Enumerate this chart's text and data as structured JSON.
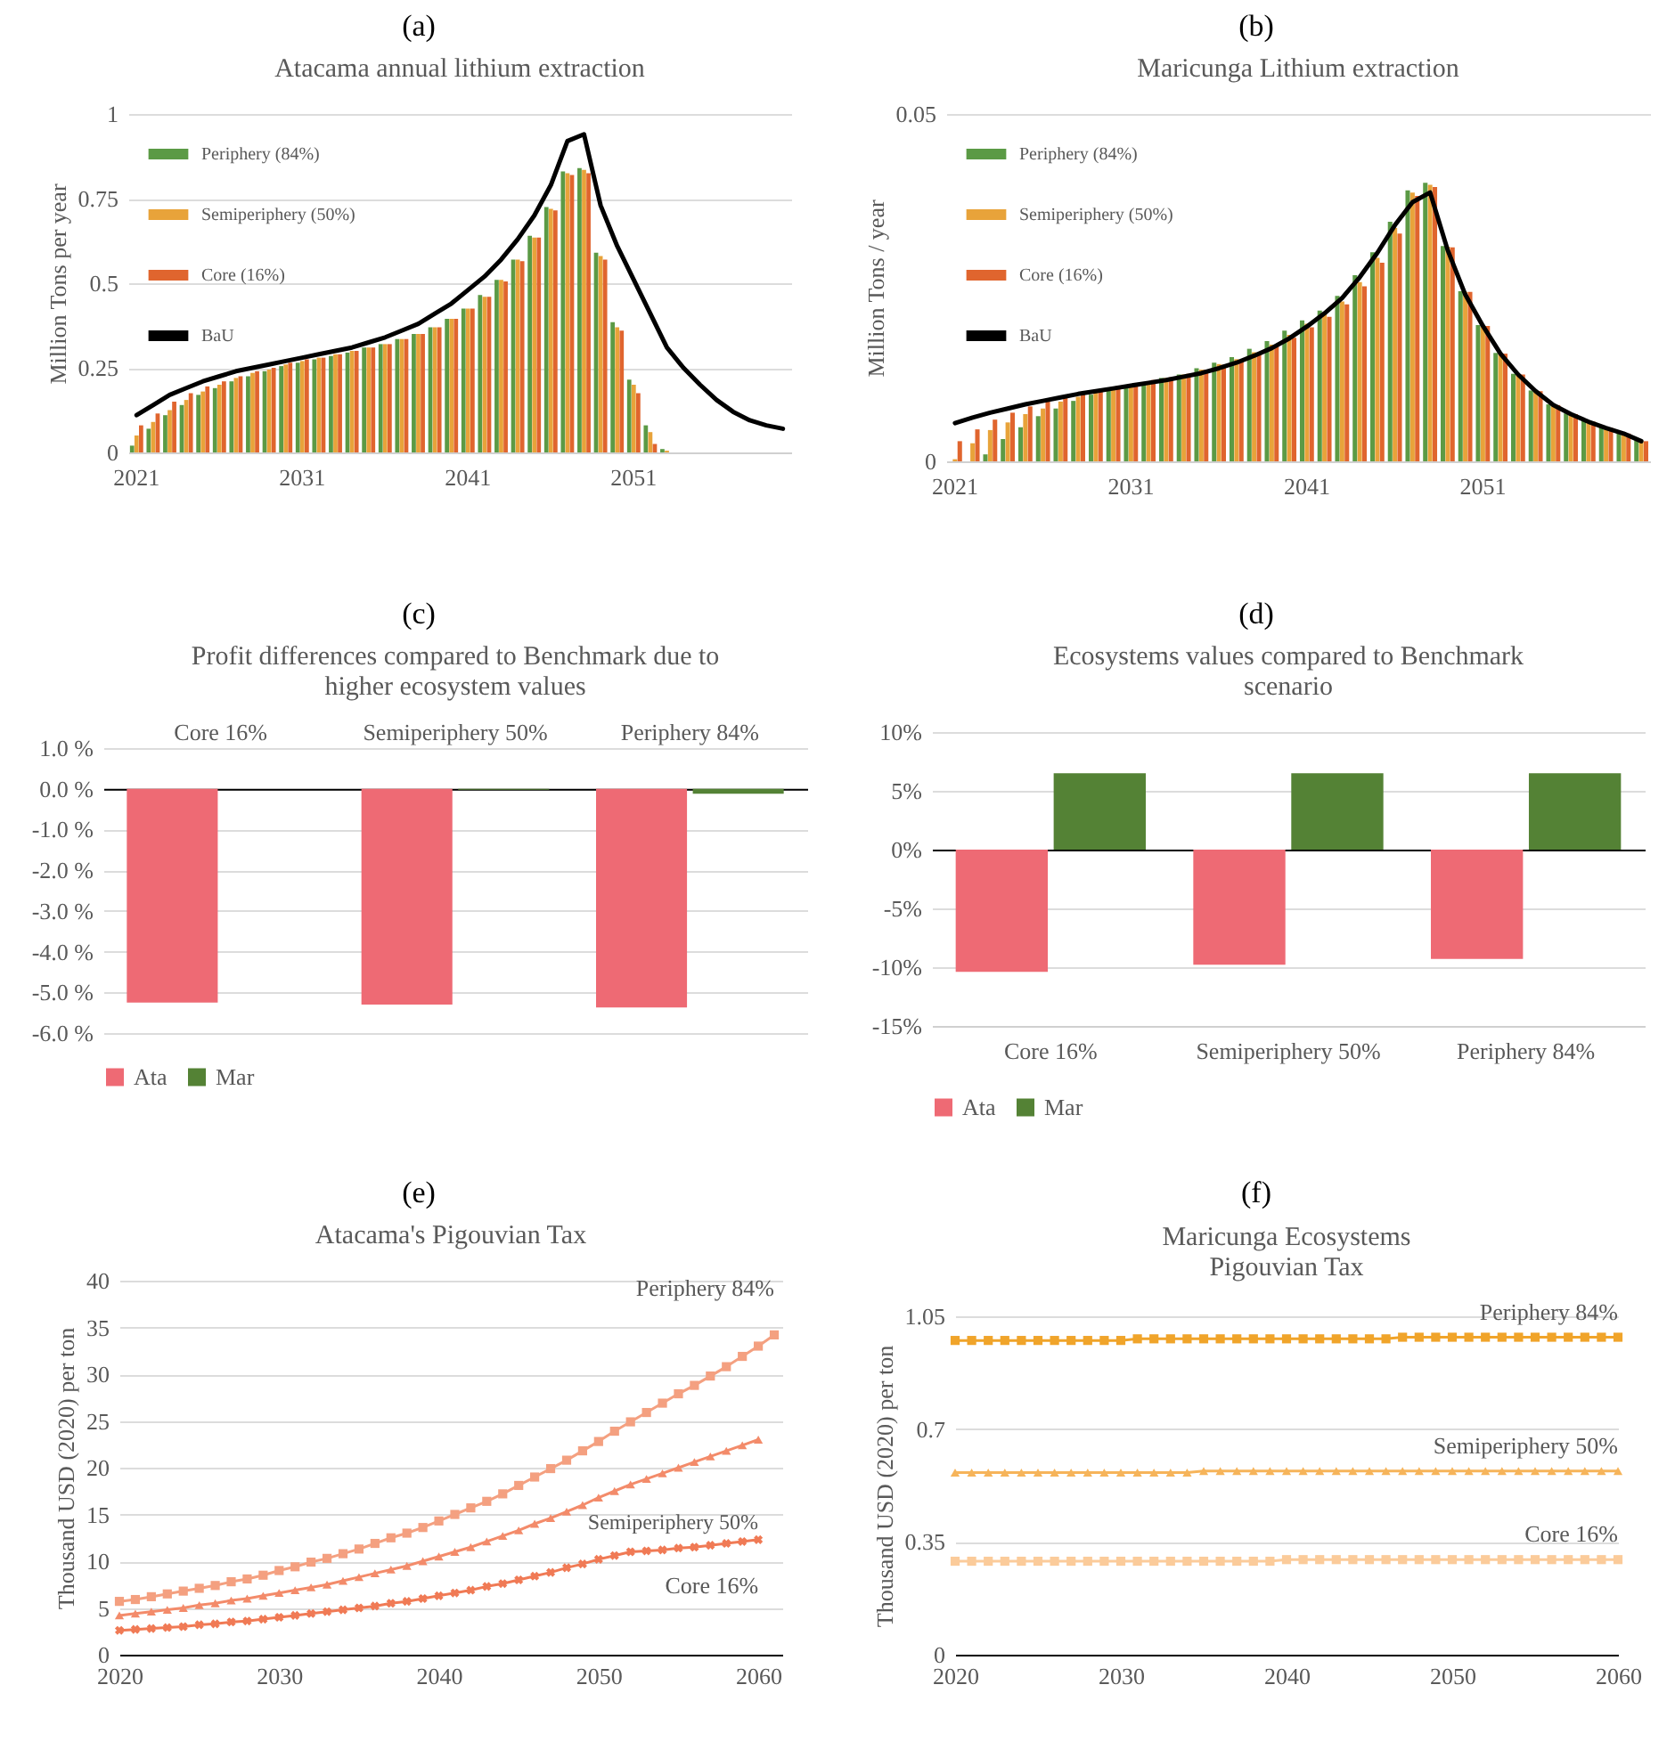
{
  "chart_data": [
    {
      "type": "bar",
      "title": "Atacama annual lithium extraction",
      "ylabel": "Million Tons per year",
      "annotations": [
        "(a)"
      ],
      "legend": "top left",
      "grid": "y",
      "ylim": [
        0,
        1
      ],
      "yticks": [
        0,
        0.25,
        0.5,
        0.75,
        1
      ],
      "categories": [
        "2021",
        null,
        null,
        null,
        null,
        null,
        null,
        null,
        null,
        null,
        "2031",
        null,
        null,
        null,
        null,
        null,
        null,
        null,
        null,
        null,
        "2041",
        null,
        null,
        null,
        null,
        null,
        null,
        null,
        null,
        null,
        "2051",
        null,
        null,
        null,
        null,
        null,
        null,
        null,
        null,
        null
      ],
      "series": [
        {
          "name": "Periphery (84%)",
          "color": "#5b9a45",
          "values": [
            0.02,
            0.07,
            0.11,
            0.14,
            0.17,
            0.19,
            0.21,
            0.225,
            0.24,
            0.255,
            0.265,
            0.275,
            0.285,
            0.295,
            0.31,
            0.32,
            0.335,
            0.35,
            0.37,
            0.395,
            0.425,
            0.465,
            0.51,
            0.57,
            0.64,
            0.725,
            0.83,
            0.84,
            0.59,
            0.385,
            0.215,
            0.08,
            0.01,
            0,
            0,
            0,
            0,
            0,
            0,
            0
          ]
        },
        {
          "name": "Semiperiphery (50%)",
          "color": "#e8a33a",
          "values": [
            0.05,
            0.09,
            0.125,
            0.155,
            0.18,
            0.2,
            0.22,
            0.235,
            0.245,
            0.26,
            0.27,
            0.28,
            0.29,
            0.3,
            0.31,
            0.32,
            0.335,
            0.35,
            0.37,
            0.395,
            0.425,
            0.46,
            0.51,
            0.57,
            0.635,
            0.72,
            0.825,
            0.835,
            0.58,
            0.37,
            0.2,
            0.06,
            0.005,
            0,
            0,
            0,
            0,
            0,
            0,
            0
          ]
        },
        {
          "name": "Core (16%)",
          "color": "#e0652e",
          "values": [
            0.08,
            0.115,
            0.15,
            0.175,
            0.195,
            0.21,
            0.225,
            0.24,
            0.25,
            0.265,
            0.275,
            0.28,
            0.29,
            0.3,
            0.31,
            0.32,
            0.335,
            0.35,
            0.37,
            0.395,
            0.425,
            0.46,
            0.505,
            0.565,
            0.635,
            0.715,
            0.82,
            0.825,
            0.57,
            0.36,
            0.175,
            0.025,
            0,
            0,
            0,
            0,
            0,
            0,
            0,
            0
          ]
        },
        {
          "name": "BaU",
          "color": "#000000",
          "type": "line",
          "values": [
            0.11,
            0.14,
            0.17,
            0.19,
            0.21,
            0.225,
            0.24,
            0.25,
            0.26,
            0.27,
            0.28,
            0.29,
            0.3,
            0.31,
            0.325,
            0.34,
            0.36,
            0.38,
            0.41,
            0.44,
            0.48,
            0.52,
            0.57,
            0.63,
            0.7,
            0.79,
            0.92,
            0.94,
            0.73,
            0.61,
            0.51,
            0.41,
            0.31,
            0.25,
            0.2,
            0.155,
            0.12,
            0.095,
            0.08,
            0.07
          ]
        }
      ]
    },
    {
      "type": "bar",
      "title": "Maricunga Lithium extraction",
      "ylabel": "Million Tons / year",
      "annotations": [
        "(b)"
      ],
      "legend": "top left",
      "grid": "y",
      "ylim": [
        0,
        0.05
      ],
      "yticks": [
        0,
        0.05
      ],
      "categories": [
        "2021",
        null,
        null,
        null,
        null,
        null,
        null,
        null,
        null,
        null,
        "2031",
        null,
        null,
        null,
        null,
        null,
        null,
        null,
        null,
        null,
        "2041",
        null,
        null,
        null,
        null,
        null,
        null,
        null,
        null,
        null,
        "2051",
        null,
        null,
        null,
        null,
        null,
        null,
        null,
        null,
        null
      ],
      "series": [
        {
          "name": "Periphery (84%)",
          "color": "#5b9a45",
          "values": [
            0,
            0,
            0.001,
            0.0032,
            0.0049,
            0.0065,
            0.0076,
            0.0087,
            0.0096,
            0.0103,
            0.0109,
            0.0114,
            0.012,
            0.0125,
            0.0134,
            0.0142,
            0.015,
            0.0162,
            0.0173,
            0.0188,
            0.0203,
            0.0217,
            0.0238,
            0.0268,
            0.0301,
            0.0345,
            0.039,
            0.0401,
            0.031,
            0.0245,
            0.0196,
            0.0156,
            0.0126,
            0.0102,
            0.0082,
            0.0069,
            0.0058,
            0.0049,
            0.0041,
            0.003
          ]
        },
        {
          "name": "Semiperiphery (50%)",
          "color": "#e8a33a",
          "values": [
            0.0003,
            0.0026,
            0.0045,
            0.0056,
            0.0068,
            0.0076,
            0.0086,
            0.0093,
            0.01,
            0.0105,
            0.011,
            0.0115,
            0.012,
            0.0125,
            0.0132,
            0.014,
            0.0147,
            0.0157,
            0.0168,
            0.0182,
            0.0198,
            0.0212,
            0.023,
            0.0258,
            0.0293,
            0.0336,
            0.0387,
            0.0398,
            0.0309,
            0.0244,
            0.0195,
            0.0155,
            0.0125,
            0.0101,
            0.0081,
            0.0068,
            0.0057,
            0.0048,
            0.004,
            0.0029
          ]
        },
        {
          "name": "Core (16%)",
          "color": "#e0652e",
          "values": [
            0.0029,
            0.0046,
            0.006,
            0.007,
            0.0079,
            0.0086,
            0.0093,
            0.01,
            0.0104,
            0.0109,
            0.0112,
            0.0117,
            0.0121,
            0.0126,
            0.0132,
            0.0139,
            0.0146,
            0.0155,
            0.0166,
            0.0178,
            0.0193,
            0.0208,
            0.0226,
            0.0252,
            0.0286,
            0.0328,
            0.0382,
            0.0395,
            0.0308,
            0.0244,
            0.0195,
            0.0155,
            0.0125,
            0.0101,
            0.0081,
            0.0068,
            0.0057,
            0.0048,
            0.004,
            0.0029
          ]
        },
        {
          "name": "BaU",
          "color": "#000000",
          "type": "line",
          "values": [
            0.0055,
            0.0063,
            0.007,
            0.0076,
            0.0082,
            0.0087,
            0.0092,
            0.0097,
            0.0101,
            0.0105,
            0.0109,
            0.0113,
            0.0117,
            0.0122,
            0.0127,
            0.0134,
            0.0142,
            0.0152,
            0.0163,
            0.0177,
            0.0194,
            0.0213,
            0.0235,
            0.0265,
            0.03,
            0.034,
            0.0373,
            0.0387,
            0.0304,
            0.024,
            0.0195,
            0.0155,
            0.0125,
            0.0101,
            0.0081,
            0.0068,
            0.0057,
            0.0048,
            0.004,
            0.0029
          ]
        }
      ]
    },
    {
      "type": "bar",
      "title": "Profit differences compared to Benchmark due to higher ecosystem values",
      "annotations": [
        "(c)"
      ],
      "legend": "bottom",
      "grid": "y",
      "ylim": [
        -6,
        1
      ],
      "yticks": [
        {
          "value": 1,
          "label": "1.0 %"
        },
        {
          "value": 0,
          "label": "0.0 %"
        },
        {
          "value": -1,
          "label": "-1.0 %"
        },
        {
          "value": -2,
          "label": "-2.0 %"
        },
        {
          "value": -3,
          "label": "-3.0 %"
        },
        {
          "value": -4,
          "label": "-4.0 %"
        },
        {
          "value": -5,
          "label": "-5.0 %"
        },
        {
          "value": -6,
          "label": "-6.0 %"
        }
      ],
      "categories": [
        "Core 16%",
        "Semiperiphery 50%",
        "Periphery 84%"
      ],
      "series": [
        {
          "name": "Ata",
          "color": "#ee6a74",
          "values": [
            -5.25,
            -5.3,
            -5.37
          ]
        },
        {
          "name": "Mar",
          "color": "#548235",
          "values": [
            0,
            -0.02,
            -0.12
          ]
        }
      ]
    },
    {
      "type": "bar",
      "title": "Ecosystems values compared to Benchmark scenario",
      "annotations": [
        "(d)"
      ],
      "legend": "bottom",
      "grid": "y",
      "ylim": [
        -15,
        10
      ],
      "yticks": [
        {
          "value": 10,
          "label": "10%"
        },
        {
          "value": 5,
          "label": "5%"
        },
        {
          "value": 0,
          "label": "0%"
        },
        {
          "value": -5,
          "label": "-5%"
        },
        {
          "value": -10,
          "label": "-10%"
        },
        {
          "value": -15,
          "label": "-15%"
        }
      ],
      "categories": [
        "Core 16%",
        "Semiperiphery 50%",
        "Periphery 84%"
      ],
      "series": [
        {
          "name": "Ata",
          "color": "#ee6a74",
          "values": [
            -10.4,
            -9.8,
            -9.3
          ]
        },
        {
          "name": "Mar",
          "color": "#548235",
          "values": [
            6.5,
            6.5,
            6.5
          ]
        }
      ]
    },
    {
      "type": "line",
      "title": "Atacama's Pigouvian Tax",
      "ylabel": "Thousand USD (2020) per ton",
      "annotations": [
        "(e)"
      ],
      "grid": "y",
      "ylim": [
        0,
        40
      ],
      "yticks": [
        0,
        5,
        10,
        15,
        20,
        25,
        30,
        35,
        40
      ],
      "xlim": [
        2020,
        2061.5
      ],
      "xticks": [
        2020,
        2030,
        2040,
        2050,
        2060
      ],
      "x": [
        2020,
        2021,
        2022,
        2023,
        2024,
        2025,
        2026,
        2027,
        2028,
        2029,
        2030,
        2031,
        2032,
        2033,
        2034,
        2035,
        2036,
        2037,
        2038,
        2039,
        2040,
        2041,
        2042,
        2043,
        2044,
        2045,
        2046,
        2047,
        2048,
        2049,
        2050,
        2051,
        2052,
        2053,
        2054,
        2055,
        2056,
        2057,
        2058,
        2059,
        2060
      ],
      "series": [
        {
          "name": "Periphery 84%",
          "color": "#f4a080",
          "marker": "square",
          "x": [
            2020,
            2021,
            2022,
            2023,
            2024,
            2025,
            2026,
            2027,
            2028,
            2029,
            2030,
            2031,
            2032,
            2033,
            2034,
            2035,
            2036,
            2037,
            2038,
            2039,
            2040,
            2041,
            2042,
            2043,
            2044,
            2045,
            2046,
            2047,
            2048,
            2049,
            2050,
            2051,
            2052,
            2053,
            2054,
            2055,
            2056,
            2057,
            2058,
            2059,
            2060,
            2061
          ],
          "values": [
            5.7,
            5.9,
            6.2,
            6.5,
            6.8,
            7.1,
            7.4,
            7.8,
            8.1,
            8.5,
            9.0,
            9.4,
            9.9,
            10.3,
            10.8,
            11.3,
            11.9,
            12.5,
            13.0,
            13.6,
            14.3,
            15.0,
            15.7,
            16.4,
            17.2,
            18.1,
            19.0,
            19.9,
            20.8,
            21.8,
            22.8,
            23.9,
            24.9,
            25.9,
            26.9,
            27.9,
            28.8,
            29.8,
            30.8,
            31.9,
            33.0,
            34.2
          ]
        },
        {
          "name": "Semiperiphery 50%",
          "color": "#f38b6a",
          "marker": "triangle",
          "values": [
            4.2,
            4.4,
            4.6,
            4.8,
            5.0,
            5.3,
            5.5,
            5.8,
            6.0,
            6.3,
            6.6,
            6.9,
            7.2,
            7.5,
            7.9,
            8.3,
            8.7,
            9.1,
            9.5,
            10.0,
            10.5,
            11.0,
            11.5,
            12.1,
            12.7,
            13.3,
            14.0,
            14.6,
            15.3,
            16.0,
            16.8,
            17.5,
            18.2,
            18.8,
            19.4,
            20.0,
            20.6,
            21.2,
            21.8,
            22.4,
            23.0
          ]
        },
        {
          "name": "Core 16%",
          "color": "#f07a55",
          "marker": "cross",
          "values": [
            2.6,
            2.7,
            2.8,
            2.9,
            3.0,
            3.2,
            3.3,
            3.5,
            3.6,
            3.8,
            4.0,
            4.2,
            4.4,
            4.6,
            4.8,
            5.0,
            5.2,
            5.5,
            5.7,
            6.0,
            6.3,
            6.6,
            6.9,
            7.3,
            7.6,
            8.0,
            8.4,
            8.8,
            9.3,
            9.7,
            10.2,
            10.6,
            11.0,
            11.1,
            11.2,
            11.4,
            11.5,
            11.7,
            11.9,
            12.1,
            12.3
          ]
        }
      ]
    },
    {
      "type": "line",
      "title": "Maricunga Ecosystems Pigouvian Tax",
      "ylabel": "Thousand USD (2020) per ton",
      "annotations": [
        "(f)"
      ],
      "grid": "y",
      "ylim": [
        0,
        1.05
      ],
      "yticks": [
        0,
        0.35,
        0.7,
        1.05
      ],
      "xlim": [
        2020,
        2060
      ],
      "xticks": [
        2020,
        2030,
        2040,
        2050,
        2060
      ],
      "x": [
        2020,
        2021,
        2022,
        2023,
        2024,
        2025,
        2026,
        2027,
        2028,
        2029,
        2030,
        2031,
        2032,
        2033,
        2034,
        2035,
        2036,
        2037,
        2038,
        2039,
        2040,
        2041,
        2042,
        2043,
        2044,
        2045,
        2046,
        2047,
        2048,
        2049,
        2050,
        2051,
        2052,
        2053,
        2054,
        2055,
        2056,
        2057,
        2058,
        2059,
        2060
      ],
      "series": [
        {
          "name": "Periphery 84%",
          "color": "#f0a42a",
          "marker": "square",
          "values": [
            0.975,
            0.975,
            0.975,
            0.975,
            0.975,
            0.975,
            0.975,
            0.975,
            0.975,
            0.975,
            0.975,
            0.98,
            0.98,
            0.98,
            0.98,
            0.98,
            0.98,
            0.98,
            0.98,
            0.98,
            0.98,
            0.98,
            0.98,
            0.98,
            0.98,
            0.98,
            0.98,
            0.985,
            0.985,
            0.985,
            0.985,
            0.985,
            0.985,
            0.985,
            0.985,
            0.985,
            0.985,
            0.985,
            0.985,
            0.985,
            0.985
          ]
        },
        {
          "name": "Semiperiphery 50%",
          "color": "#f6b45a",
          "marker": "triangle",
          "values": [
            0.565,
            0.565,
            0.565,
            0.565,
            0.565,
            0.565,
            0.565,
            0.565,
            0.565,
            0.565,
            0.565,
            0.565,
            0.565,
            0.565,
            0.565,
            0.57,
            0.57,
            0.57,
            0.57,
            0.57,
            0.57,
            0.57,
            0.57,
            0.57,
            0.57,
            0.57,
            0.57,
            0.57,
            0.57,
            0.57,
            0.57,
            0.57,
            0.57,
            0.57,
            0.57,
            0.57,
            0.57,
            0.57,
            0.57,
            0.57,
            0.57
          ]
        },
        {
          "name": "Core 16%",
          "color": "#fbcb9a",
          "marker": "square",
          "values": [
            0.29,
            0.29,
            0.29,
            0.29,
            0.29,
            0.29,
            0.29,
            0.29,
            0.29,
            0.29,
            0.29,
            0.29,
            0.29,
            0.29,
            0.29,
            0.29,
            0.29,
            0.29,
            0.29,
            0.29,
            0.295,
            0.295,
            0.295,
            0.295,
            0.295,
            0.295,
            0.295,
            0.295,
            0.295,
            0.295,
            0.295,
            0.295,
            0.295,
            0.295,
            0.295,
            0.295,
            0.295,
            0.295,
            0.295,
            0.295,
            0.295
          ]
        }
      ]
    }
  ]
}
